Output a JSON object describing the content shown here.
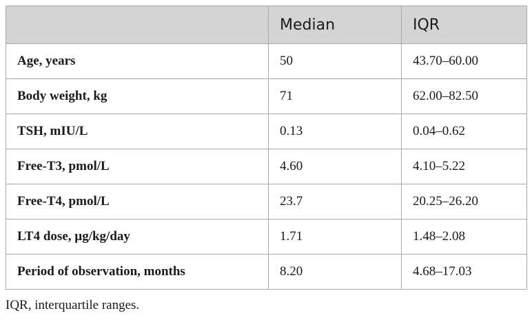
{
  "table": {
    "headers": [
      "",
      "Median",
      "IQR"
    ],
    "rows": [
      {
        "label": "Age, years",
        "median": "50",
        "iqr": "43.70–60.00"
      },
      {
        "label": "Body weight, kg",
        "median": "71",
        "iqr": "62.00–82.50"
      },
      {
        "label": "TSH, mIU/L",
        "median": "0.13",
        "iqr": "0.04–0.62"
      },
      {
        "label": "Free-T3, pmol/L",
        "median": "4.60",
        "iqr": "4.10–5.22"
      },
      {
        "label": "Free-T4, pmol/L",
        "median": "23.7",
        "iqr": "20.25–26.20"
      },
      {
        "label": "LT4 dose, µg/kg/day",
        "median": "1.71",
        "iqr": "1.48–2.08"
      },
      {
        "label": "Period of observation, months",
        "median": "8.20",
        "iqr": "4.68–17.03"
      }
    ]
  },
  "footnote": "IQR, interquartile ranges.",
  "colors": {
    "header_bg": "#d4d4d4",
    "border": "#a8a8a8",
    "text": "#1a1a1a"
  }
}
